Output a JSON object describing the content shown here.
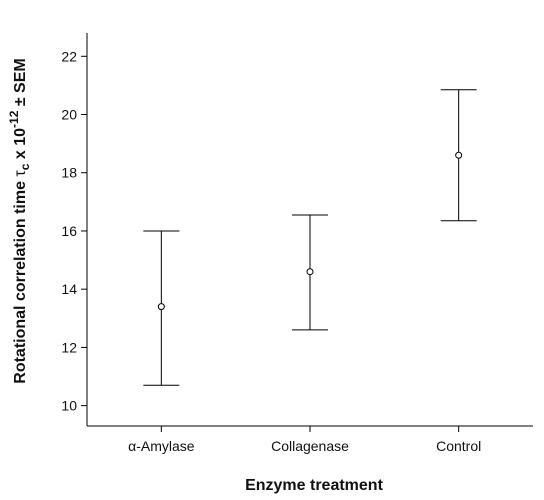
{
  "chart_data": {
    "type": "scatter",
    "title": "",
    "xlabel": "Enzyme treatment",
    "ylabel_parts": [
      "Rotational correlation time ",
      "τ",
      "c",
      " x 10",
      "-12",
      " ± SEM"
    ],
    "categories": [
      "α-Amylase",
      "Collagenase",
      "Control"
    ],
    "series": [
      {
        "values": [
          13.4,
          14.6,
          18.6
        ],
        "error_low": [
          10.7,
          12.6,
          16.35
        ],
        "error_high": [
          16.0,
          16.55,
          20.85
        ]
      }
    ],
    "ylim": [
      9.3,
      22.8
    ],
    "yticks": [
      10,
      12,
      14,
      16,
      18,
      20,
      22
    ],
    "grid": false,
    "legend": "none",
    "colors": {
      "axis": "#000000",
      "marker": "#000000"
    }
  }
}
